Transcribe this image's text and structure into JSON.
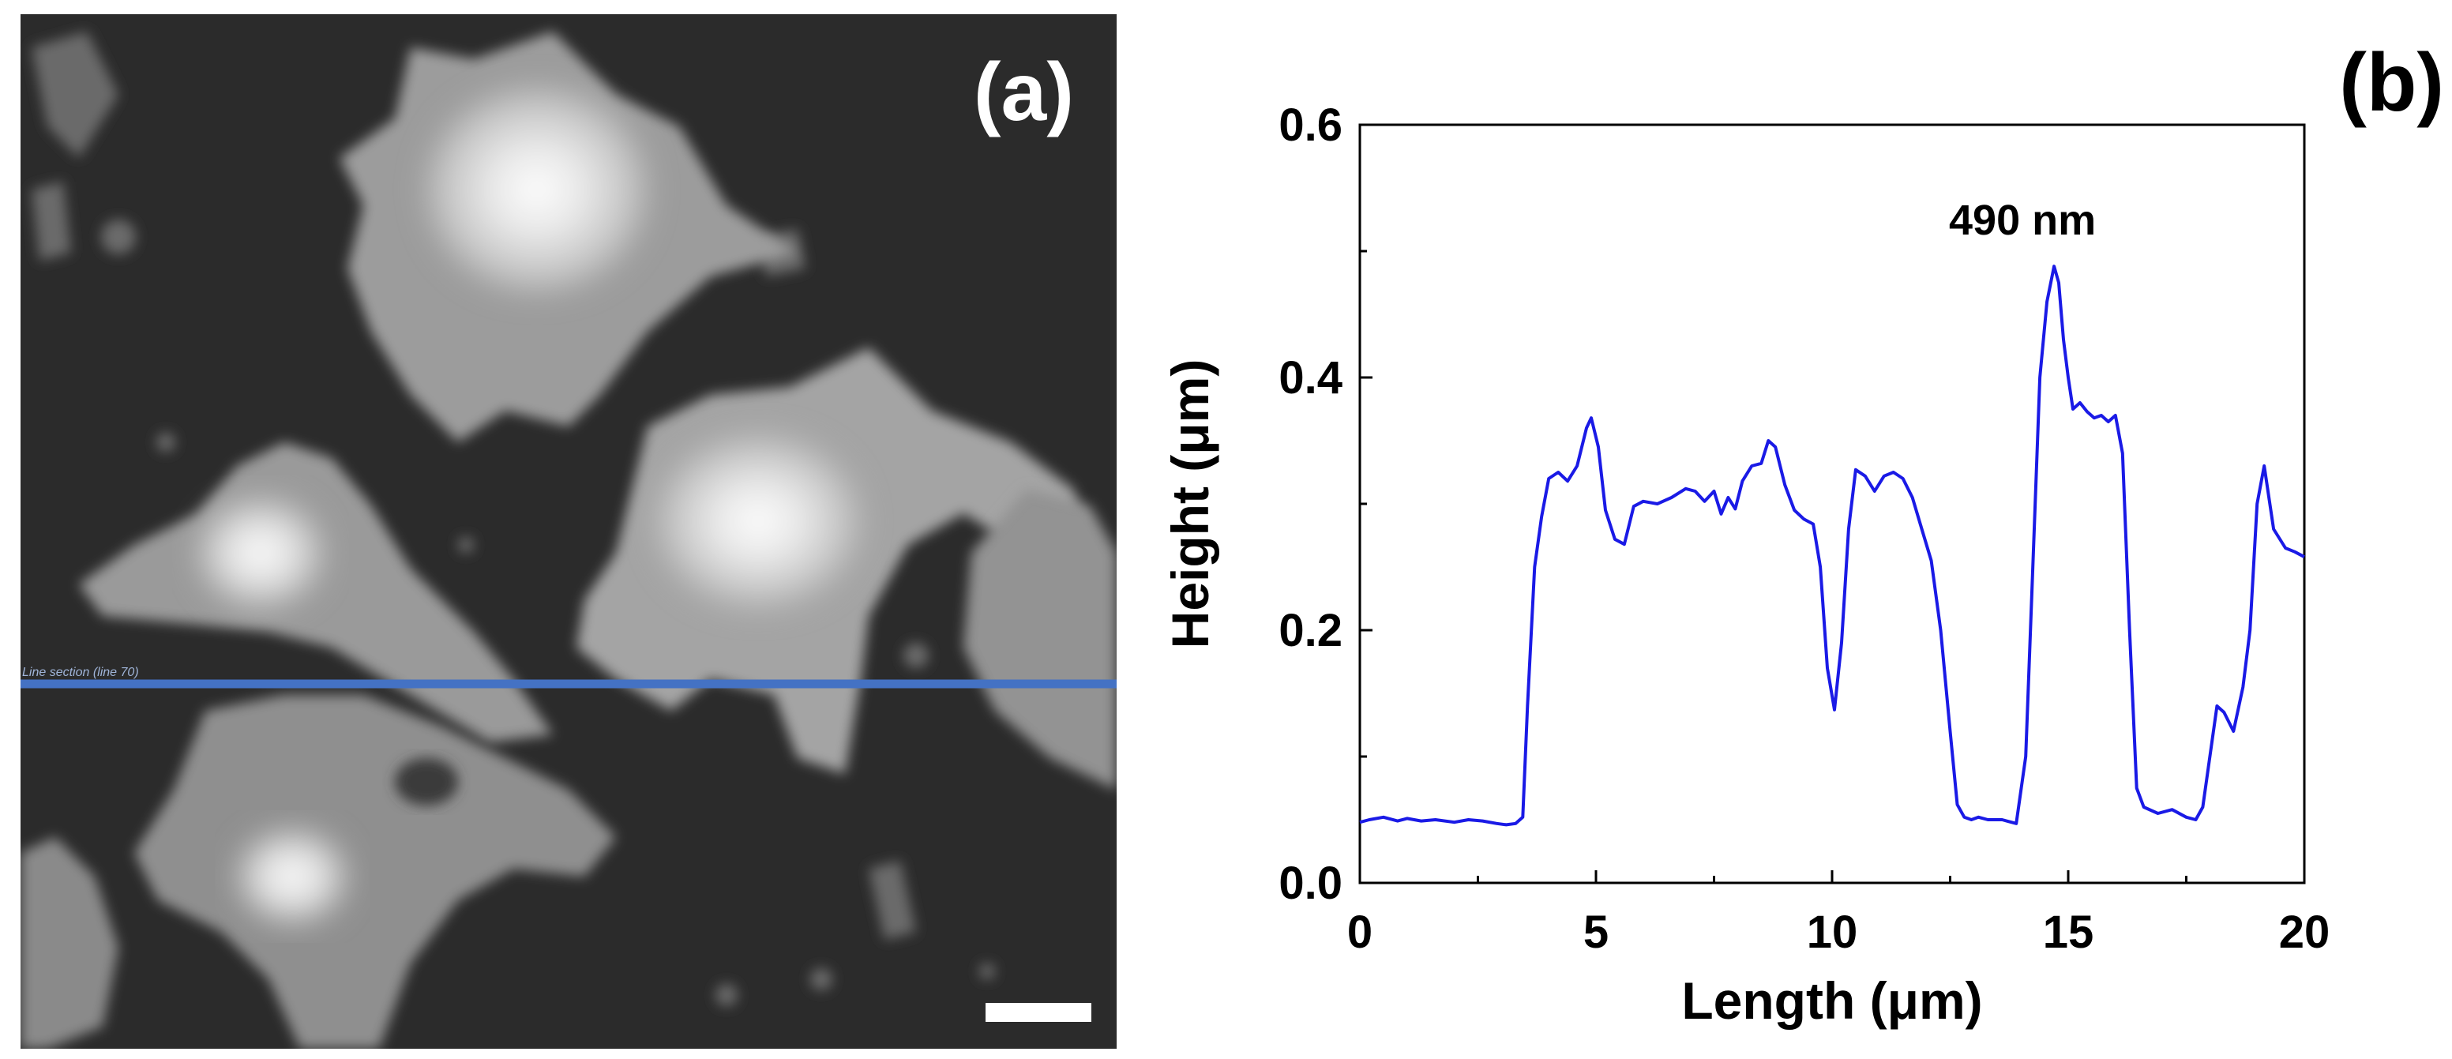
{
  "panels": {
    "a": {
      "label": "(a)",
      "line_section_label": "Line section (line 70)"
    },
    "b": {
      "label": "(b)"
    }
  },
  "chart_data": {
    "type": "line",
    "title": "",
    "xlabel": "Length (μm)",
    "ylabel": "Height (μm)",
    "xlim": [
      0,
      20
    ],
    "ylim": [
      0,
      0.6
    ],
    "xticks": [
      0,
      5,
      10,
      15,
      20
    ],
    "xtick_labels": [
      "0",
      "5",
      "10",
      "15",
      "20"
    ],
    "yticks": [
      0.0,
      0.2,
      0.4,
      0.6
    ],
    "ytick_labels": [
      "0.0",
      "0.2",
      "0.4",
      "0.6"
    ],
    "grid": false,
    "series": [
      {
        "color": "#1a1ae6",
        "x": [
          0,
          0.2,
          0.5,
          0.8,
          1.0,
          1.3,
          1.6,
          2.0,
          2.3,
          2.6,
          2.9,
          3.1,
          3.3,
          3.45,
          3.55,
          3.7,
          3.85,
          4.0,
          4.2,
          4.4,
          4.6,
          4.8,
          4.9,
          5.05,
          5.2,
          5.4,
          5.6,
          5.8,
          6.0,
          6.3,
          6.6,
          6.9,
          7.1,
          7.3,
          7.5,
          7.65,
          7.8,
          7.95,
          8.1,
          8.3,
          8.5,
          8.65,
          8.8,
          9.0,
          9.2,
          9.4,
          9.6,
          9.75,
          9.9,
          10.05,
          10.2,
          10.35,
          10.5,
          10.7,
          10.9,
          11.1,
          11.3,
          11.5,
          11.7,
          11.9,
          12.1,
          12.3,
          12.5,
          12.65,
          12.8,
          12.95,
          13.1,
          13.3,
          13.6,
          13.9,
          14.1,
          14.25,
          14.4,
          14.55,
          14.7,
          14.8,
          14.9,
          15.0,
          15.1,
          15.25,
          15.4,
          15.55,
          15.7,
          15.85,
          16.0,
          16.15,
          16.3,
          16.45,
          16.6,
          16.9,
          17.2,
          17.5,
          17.7,
          17.85,
          18.0,
          18.15,
          18.3,
          18.5,
          18.7,
          18.85,
          19.0,
          19.15,
          19.35,
          19.6,
          19.8,
          20.0
        ],
        "y": [
          0.048,
          0.05,
          0.052,
          0.049,
          0.051,
          0.049,
          0.05,
          0.048,
          0.05,
          0.049,
          0.047,
          0.046,
          0.047,
          0.052,
          0.14,
          0.25,
          0.29,
          0.32,
          0.325,
          0.318,
          0.33,
          0.36,
          0.368,
          0.345,
          0.295,
          0.272,
          0.268,
          0.298,
          0.302,
          0.3,
          0.305,
          0.312,
          0.31,
          0.302,
          0.31,
          0.292,
          0.305,
          0.296,
          0.318,
          0.33,
          0.332,
          0.35,
          0.345,
          0.315,
          0.295,
          0.288,
          0.284,
          0.25,
          0.17,
          0.137,
          0.19,
          0.28,
          0.327,
          0.322,
          0.31,
          0.322,
          0.325,
          0.32,
          0.305,
          0.28,
          0.255,
          0.2,
          0.12,
          0.062,
          0.052,
          0.05,
          0.052,
          0.05,
          0.05,
          0.047,
          0.1,
          0.25,
          0.4,
          0.46,
          0.488,
          0.475,
          0.43,
          0.4,
          0.375,
          0.38,
          0.373,
          0.368,
          0.37,
          0.365,
          0.37,
          0.34,
          0.2,
          0.075,
          0.06,
          0.055,
          0.058,
          0.052,
          0.05,
          0.06,
          0.1,
          0.14,
          0.135,
          0.12,
          0.155,
          0.2,
          0.3,
          0.33,
          0.28,
          0.265,
          0.262,
          0.258
        ]
      }
    ],
    "annotations": [
      {
        "text": "490 nm",
        "x": 14.7,
        "y": 0.488
      }
    ]
  }
}
